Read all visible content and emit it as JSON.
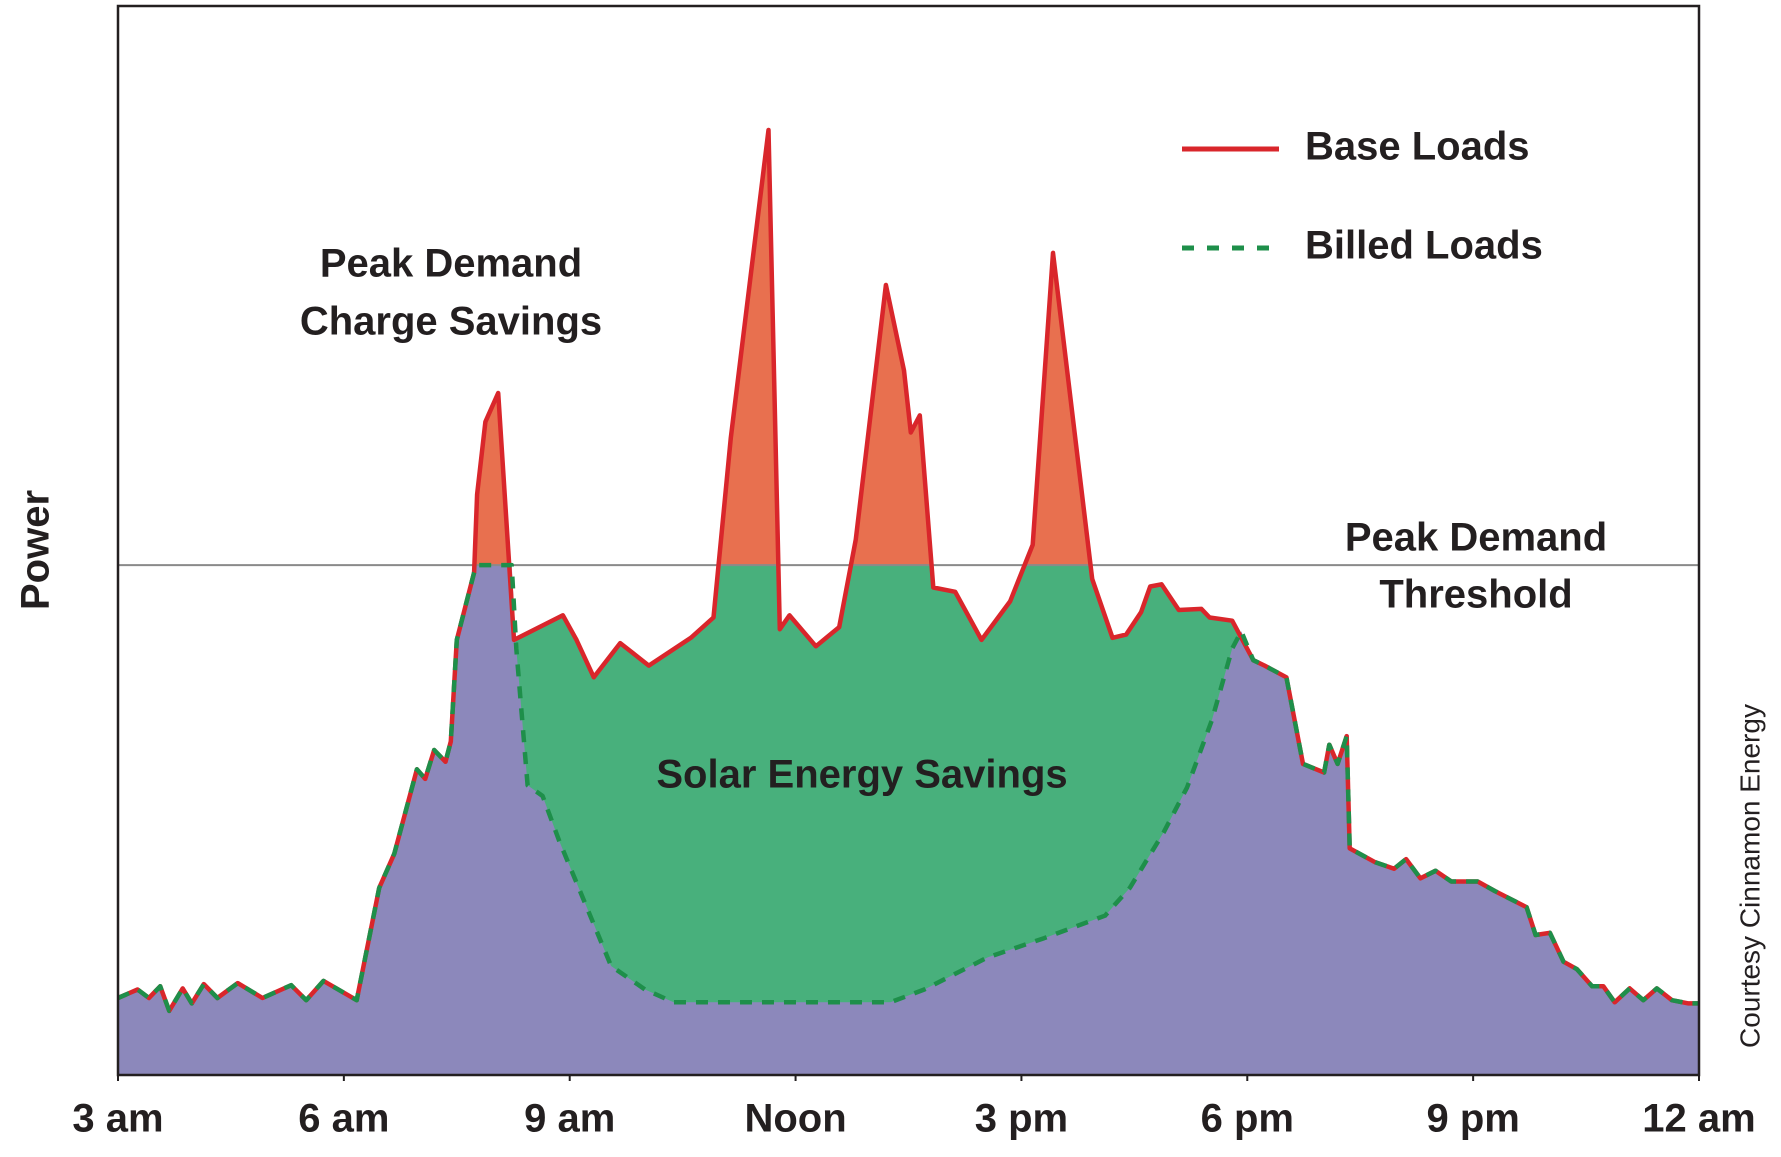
{
  "chart_data": {
    "type": "area",
    "ylabel": "Power",
    "xlim": [
      3,
      24
    ],
    "ylim": [
      0,
      100
    ],
    "xticks": [
      {
        "value": 3,
        "label": "3 am"
      },
      {
        "value": 6,
        "label": "6 am"
      },
      {
        "value": 9,
        "label": "9 am"
      },
      {
        "value": 12,
        "label": "Noon"
      },
      {
        "value": 15,
        "label": "3 pm"
      },
      {
        "value": 18,
        "label": "6 pm"
      },
      {
        "value": 21,
        "label": "9 pm"
      },
      {
        "value": 24,
        "label": "12 am"
      }
    ],
    "threshold": {
      "value": 47.7,
      "label": [
        "Peak Demand",
        "Threshold"
      ],
      "color": "#8a8a8a"
    },
    "annotations": [
      {
        "lines": [
          "Peak Demand",
          "Charge Savings"
        ]
      },
      {
        "lines": [
          "Solar Energy Savings"
        ]
      }
    ],
    "credit": "Courtesy Cinnamon Energy",
    "fills": {
      "above_threshold": "#e8704f",
      "savings": "#48b07c",
      "billed": "#8c88bb"
    },
    "series": [
      {
        "name": "Base Loads",
        "color": "#d9262b",
        "dash": false,
        "x": [
          3.0,
          3.26,
          3.41,
          3.56,
          3.68,
          3.86,
          3.98,
          4.14,
          4.32,
          4.59,
          4.92,
          5.3,
          5.5,
          5.73,
          6.17,
          6.47,
          6.67,
          6.97,
          7.08,
          7.2,
          7.35,
          7.42,
          7.5,
          7.73,
          7.77,
          7.88,
          8.05,
          8.26,
          8.91,
          9.09,
          9.32,
          9.67,
          10.05,
          10.61,
          10.91,
          11.14,
          11.64,
          11.79,
          11.92,
          12.27,
          12.58,
          12.8,
          13.2,
          13.44,
          13.53,
          13.65,
          13.83,
          14.12,
          14.47,
          14.85,
          15.15,
          15.42,
          15.94,
          16.21,
          16.39,
          16.59,
          16.71,
          16.86,
          17.09,
          17.39,
          17.5,
          17.8,
          18.08,
          18.23,
          18.52,
          18.74,
          19.02,
          19.09,
          19.2,
          19.32,
          19.36,
          19.7,
          19.95,
          20.11,
          20.3,
          20.5,
          20.71,
          21.06,
          21.29,
          21.71,
          21.83,
          22.02,
          22.2,
          22.38,
          22.58,
          22.73,
          22.88,
          23.08,
          23.26,
          23.44,
          23.64,
          23.86,
          24.0
        ],
        "values": [
          7.2,
          8.0,
          7.2,
          8.3,
          6.0,
          8.1,
          6.7,
          8.5,
          7.2,
          8.6,
          7.2,
          8.4,
          7.0,
          8.8,
          7.0,
          17.5,
          20.7,
          28.6,
          27.7,
          30.4,
          29.3,
          31.2,
          40.7,
          47.0,
          54.3,
          61.1,
          63.8,
          40.7,
          43.0,
          40.7,
          37.2,
          40.4,
          38.3,
          40.9,
          42.8,
          59.6,
          88.4,
          41.7,
          43.0,
          40.1,
          41.9,
          50.1,
          73.9,
          65.9,
          60.1,
          61.7,
          45.6,
          45.2,
          40.7,
          44.3,
          49.6,
          76.9,
          46.4,
          40.9,
          41.2,
          43.3,
          45.7,
          45.9,
          43.5,
          43.6,
          42.8,
          42.5,
          38.8,
          38.3,
          37.2,
          29.1,
          28.3,
          30.9,
          29.1,
          31.7,
          21.2,
          19.9,
          19.3,
          20.2,
          18.4,
          19.1,
          18.1,
          18.1,
          17.2,
          15.7,
          13.1,
          13.3,
          10.6,
          9.9,
          8.3,
          8.3,
          6.8,
          8.1,
          7.0,
          8.1,
          7.0,
          6.7,
          6.7
        ]
      },
      {
        "name": "Billed Loads",
        "color": "#1e8f4a",
        "dash": true,
        "x": [
          3.0,
          3.26,
          3.41,
          3.56,
          3.68,
          3.86,
          3.98,
          4.14,
          4.32,
          4.59,
          4.92,
          5.3,
          5.5,
          5.73,
          6.17,
          6.47,
          6.67,
          6.97,
          7.08,
          7.2,
          7.35,
          7.42,
          7.5,
          7.73,
          7.77,
          8.23,
          8.29,
          8.44,
          8.64,
          8.86,
          9.32,
          9.55,
          10.0,
          10.38,
          13.26,
          13.71,
          14.55,
          15.3,
          16.11,
          16.44,
          16.89,
          17.2,
          17.53,
          17.8,
          17.92,
          18.08,
          18.23,
          18.52,
          18.74,
          19.02,
          19.09,
          19.2,
          19.32,
          19.36,
          19.7,
          19.95,
          20.11,
          20.3,
          20.5,
          20.71,
          21.06,
          21.29,
          21.71,
          21.83,
          22.02,
          22.2,
          22.38,
          22.58,
          22.73,
          22.88,
          23.08,
          23.26,
          23.44,
          23.64,
          23.86,
          24.0
        ],
        "values": [
          7.2,
          8.0,
          7.2,
          8.3,
          6.0,
          8.1,
          6.7,
          8.5,
          7.2,
          8.6,
          7.2,
          8.4,
          7.0,
          8.8,
          7.0,
          17.5,
          20.7,
          28.6,
          27.7,
          30.4,
          29.3,
          31.2,
          40.7,
          47.0,
          47.7,
          47.7,
          39.9,
          27.1,
          26.1,
          21.9,
          14.1,
          10.2,
          8.0,
          6.8,
          6.8,
          8.0,
          11.0,
          12.8,
          14.9,
          17.5,
          22.7,
          26.9,
          33.2,
          39.9,
          41.5,
          38.8,
          38.3,
          37.2,
          29.1,
          28.3,
          30.9,
          29.1,
          31.7,
          21.2,
          19.9,
          19.3,
          20.2,
          18.4,
          19.1,
          18.1,
          18.1,
          17.2,
          15.7,
          13.1,
          13.3,
          10.6,
          9.9,
          8.3,
          8.3,
          6.8,
          8.1,
          7.0,
          8.1,
          7.0,
          6.7,
          6.7
        ]
      }
    ]
  }
}
